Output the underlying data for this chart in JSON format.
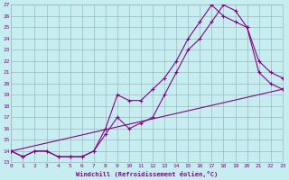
{
  "xlabel": "Windchill (Refroidissement éolien,°C)",
  "background_color": "#c6eef0",
  "line_color": "#880088",
  "grid_color": "#a0b8b8",
  "xmin": 0,
  "xmax": 23,
  "ymin": 13,
  "ymax": 27,
  "xticks": [
    0,
    1,
    2,
    3,
    4,
    5,
    6,
    7,
    8,
    9,
    10,
    11,
    12,
    13,
    14,
    15,
    16,
    17,
    18,
    19,
    20,
    21,
    22,
    23
  ],
  "yticks": [
    13,
    14,
    15,
    16,
    17,
    18,
    19,
    20,
    21,
    22,
    23,
    24,
    25,
    26,
    27
  ],
  "line1_x": [
    0,
    1,
    2,
    3,
    4,
    5,
    6,
    7,
    8,
    9,
    10,
    11,
    12,
    13,
    14,
    15,
    16,
    17,
    18,
    19,
    20,
    21,
    22,
    23
  ],
  "line1_y": [
    14,
    13.5,
    14,
    14,
    13.5,
    13.5,
    13.5,
    14,
    15.5,
    17,
    16,
    16.5,
    17,
    19,
    21,
    23,
    24,
    25.5,
    27,
    26.5,
    25,
    21,
    20,
    19.5
  ],
  "line2_x": [
    0,
    1,
    2,
    3,
    4,
    5,
    6,
    7,
    8,
    9,
    10,
    11,
    12,
    13,
    14,
    15,
    16,
    17,
    18,
    19,
    20,
    21,
    22,
    23
  ],
  "line2_y": [
    14,
    13.5,
    14,
    14,
    13.5,
    13.5,
    13.5,
    14,
    16,
    19,
    18.5,
    18.5,
    19.5,
    20.5,
    22,
    24,
    25.5,
    27,
    26,
    25.5,
    25,
    22,
    21,
    20.5
  ],
  "line3_x": [
    0,
    23
  ],
  "line3_y": [
    14,
    19.5
  ]
}
